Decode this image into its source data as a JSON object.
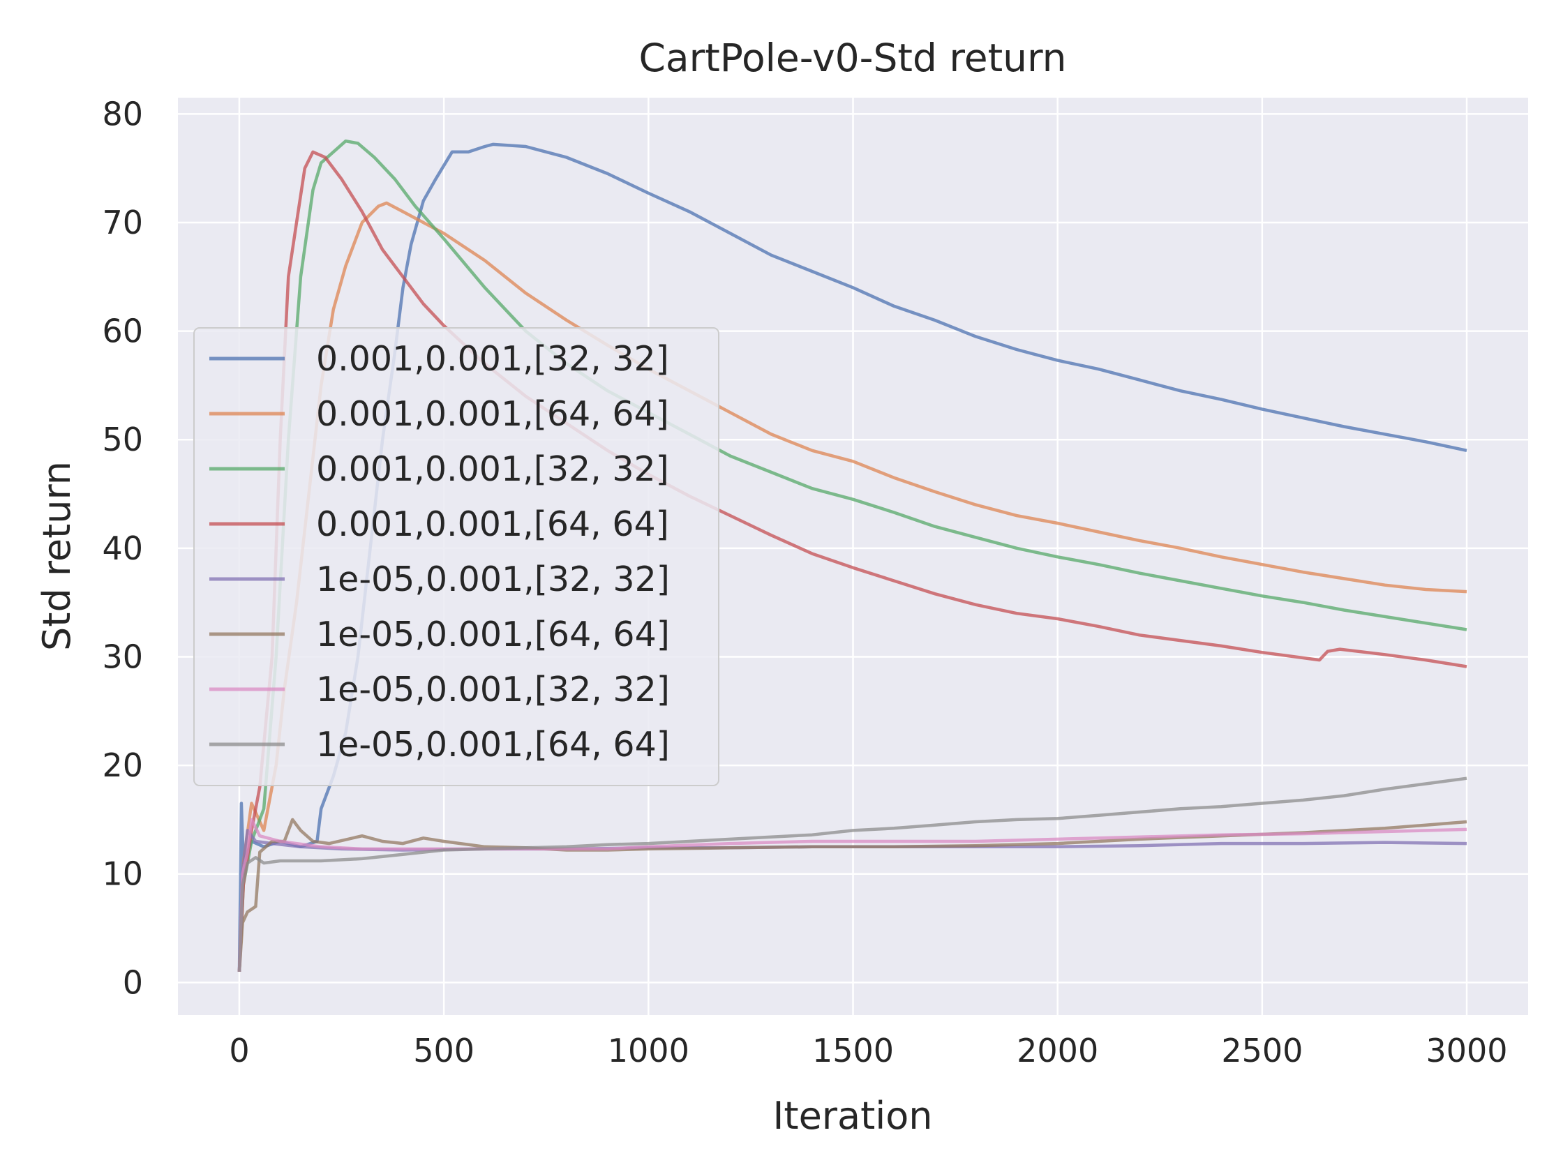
{
  "chart_data": {
    "type": "line",
    "title": "CartPole-v0-Std return",
    "xlabel": "Iteration",
    "ylabel": "Std return",
    "xlim": [
      -150,
      3150
    ],
    "ylim": [
      -3,
      81.5
    ],
    "xticks": [
      "0",
      "500",
      "1000",
      "1500",
      "2000",
      "2500",
      "3000"
    ],
    "xtick_values": [
      0,
      500,
      1000,
      1500,
      2000,
      2500,
      3000
    ],
    "yticks": [
      "0",
      "10",
      "20",
      "30",
      "40",
      "50",
      "60",
      "70",
      "80"
    ],
    "ytick_values": [
      0,
      10,
      20,
      30,
      40,
      50,
      60,
      70,
      80
    ],
    "grid": true,
    "legend_position": "center-left",
    "background": "#EAEAF2",
    "series": [
      {
        "name": "0.001,0.001,[32, 32]",
        "color": "#4C72B0",
        "points": [
          [
            0,
            1
          ],
          [
            5,
            16.5
          ],
          [
            10,
            11
          ],
          [
            30,
            13
          ],
          [
            60,
            12.5
          ],
          [
            100,
            13
          ],
          [
            150,
            12.5
          ],
          [
            190,
            13
          ],
          [
            200,
            16
          ],
          [
            230,
            19
          ],
          [
            260,
            23
          ],
          [
            290,
            30
          ],
          [
            320,
            40
          ],
          [
            350,
            50
          ],
          [
            380,
            58
          ],
          [
            400,
            64
          ],
          [
            420,
            68
          ],
          [
            450,
            72
          ],
          [
            480,
            74
          ],
          [
            520,
            76.5
          ],
          [
            560,
            76.5
          ],
          [
            600,
            77
          ],
          [
            620,
            77.2
          ],
          [
            700,
            77
          ],
          [
            800,
            76
          ],
          [
            900,
            74.5
          ],
          [
            1000,
            72.7
          ],
          [
            1100,
            71
          ],
          [
            1200,
            69
          ],
          [
            1300,
            67
          ],
          [
            1400,
            65.5
          ],
          [
            1500,
            64
          ],
          [
            1600,
            62.3
          ],
          [
            1700,
            61
          ],
          [
            1800,
            59.5
          ],
          [
            1900,
            58.3
          ],
          [
            2000,
            57.3
          ],
          [
            2100,
            56.5
          ],
          [
            2200,
            55.5
          ],
          [
            2300,
            54.5
          ],
          [
            2400,
            53.7
          ],
          [
            2500,
            52.8
          ],
          [
            2600,
            52
          ],
          [
            2700,
            51.2
          ],
          [
            2800,
            50.5
          ],
          [
            2900,
            49.8
          ],
          [
            3000,
            49
          ]
        ]
      },
      {
        "name": "0.001,0.001,[64, 64]",
        "color": "#DD8452",
        "points": [
          [
            0,
            1
          ],
          [
            10,
            11
          ],
          [
            30,
            16.5
          ],
          [
            60,
            14
          ],
          [
            90,
            20
          ],
          [
            110,
            27
          ],
          [
            140,
            35
          ],
          [
            170,
            45
          ],
          [
            200,
            55
          ],
          [
            230,
            62
          ],
          [
            260,
            66
          ],
          [
            300,
            70
          ],
          [
            340,
            71.5
          ],
          [
            360,
            71.8
          ],
          [
            400,
            71
          ],
          [
            450,
            70
          ],
          [
            500,
            69
          ],
          [
            600,
            66.5
          ],
          [
            700,
            63.5
          ],
          [
            800,
            61
          ],
          [
            900,
            58.7
          ],
          [
            1000,
            56.5
          ],
          [
            1100,
            54.5
          ],
          [
            1200,
            52.5
          ],
          [
            1300,
            50.5
          ],
          [
            1400,
            49
          ],
          [
            1500,
            48
          ],
          [
            1600,
            46.5
          ],
          [
            1700,
            45.2
          ],
          [
            1800,
            44
          ],
          [
            1900,
            43
          ],
          [
            2000,
            42.3
          ],
          [
            2100,
            41.5
          ],
          [
            2200,
            40.7
          ],
          [
            2300,
            40
          ],
          [
            2400,
            39.2
          ],
          [
            2500,
            38.5
          ],
          [
            2600,
            37.8
          ],
          [
            2700,
            37.2
          ],
          [
            2800,
            36.6
          ],
          [
            2900,
            36.2
          ],
          [
            3000,
            36
          ]
        ]
      },
      {
        "name": "0.001,0.001,[32, 32]",
        "color": "#55A868",
        "points": [
          [
            0,
            1
          ],
          [
            10,
            9
          ],
          [
            30,
            13
          ],
          [
            60,
            16
          ],
          [
            90,
            30
          ],
          [
            120,
            50
          ],
          [
            150,
            65
          ],
          [
            180,
            73
          ],
          [
            200,
            75.5
          ],
          [
            230,
            76.5
          ],
          [
            260,
            77.5
          ],
          [
            290,
            77.3
          ],
          [
            330,
            76
          ],
          [
            380,
            74
          ],
          [
            430,
            71.5
          ],
          [
            500,
            68.5
          ],
          [
            600,
            64
          ],
          [
            700,
            60
          ],
          [
            800,
            57
          ],
          [
            900,
            54.5
          ],
          [
            1000,
            52.5
          ],
          [
            1100,
            50.5
          ],
          [
            1200,
            48.5
          ],
          [
            1300,
            47
          ],
          [
            1400,
            45.5
          ],
          [
            1500,
            44.5
          ],
          [
            1600,
            43.3
          ],
          [
            1700,
            42
          ],
          [
            1800,
            41
          ],
          [
            1900,
            40
          ],
          [
            2000,
            39.2
          ],
          [
            2100,
            38.5
          ],
          [
            2200,
            37.7
          ],
          [
            2300,
            37
          ],
          [
            2400,
            36.3
          ],
          [
            2500,
            35.6
          ],
          [
            2600,
            35
          ],
          [
            2700,
            34.3
          ],
          [
            2800,
            33.7
          ],
          [
            2900,
            33.1
          ],
          [
            3000,
            32.5
          ]
        ]
      },
      {
        "name": "0.001,0.001,[64, 64]",
        "color": "#C44E52",
        "points": [
          [
            0,
            1
          ],
          [
            10,
            9
          ],
          [
            30,
            14
          ],
          [
            50,
            18
          ],
          [
            80,
            30
          ],
          [
            100,
            50
          ],
          [
            120,
            65
          ],
          [
            140,
            70
          ],
          [
            160,
            75
          ],
          [
            180,
            76.5
          ],
          [
            210,
            76
          ],
          [
            250,
            74
          ],
          [
            300,
            71
          ],
          [
            350,
            67.5
          ],
          [
            400,
            65
          ],
          [
            450,
            62.5
          ],
          [
            500,
            60.5
          ],
          [
            600,
            57
          ],
          [
            700,
            54
          ],
          [
            800,
            51.5
          ],
          [
            900,
            49
          ],
          [
            1000,
            46.8
          ],
          [
            1100,
            44.8
          ],
          [
            1200,
            43
          ],
          [
            1300,
            41.2
          ],
          [
            1400,
            39.5
          ],
          [
            1500,
            38.2
          ],
          [
            1600,
            37
          ],
          [
            1700,
            35.8
          ],
          [
            1800,
            34.8
          ],
          [
            1900,
            34
          ],
          [
            2000,
            33.5
          ],
          [
            2100,
            32.8
          ],
          [
            2200,
            32
          ],
          [
            2300,
            31.5
          ],
          [
            2400,
            31
          ],
          [
            2500,
            30.4
          ],
          [
            2600,
            29.9
          ],
          [
            2640,
            29.7
          ],
          [
            2660,
            30.5
          ],
          [
            2690,
            30.7
          ],
          [
            2800,
            30.2
          ],
          [
            2900,
            29.7
          ],
          [
            3000,
            29.1
          ]
        ]
      },
      {
        "name": "1e-05,0.001,[32, 32]",
        "color": "#8172B3",
        "points": [
          [
            0,
            1
          ],
          [
            8,
            10
          ],
          [
            20,
            14
          ],
          [
            40,
            13
          ],
          [
            80,
            12.8
          ],
          [
            150,
            12.5
          ],
          [
            250,
            12.3
          ],
          [
            400,
            12.2
          ],
          [
            600,
            12.3
          ],
          [
            800,
            12.3
          ],
          [
            1000,
            12.4
          ],
          [
            1200,
            12.4
          ],
          [
            1400,
            12.5
          ],
          [
            1600,
            12.5
          ],
          [
            1800,
            12.5
          ],
          [
            2000,
            12.5
          ],
          [
            2200,
            12.6
          ],
          [
            2400,
            12.8
          ],
          [
            2600,
            12.8
          ],
          [
            2800,
            12.9
          ],
          [
            3000,
            12.8
          ]
        ]
      },
      {
        "name": "1e-05,0.001,[64, 64]",
        "color": "#937860",
        "points": [
          [
            0,
            1
          ],
          [
            8,
            5.5
          ],
          [
            20,
            6.5
          ],
          [
            40,
            7
          ],
          [
            50,
            12
          ],
          [
            80,
            13
          ],
          [
            110,
            13
          ],
          [
            130,
            15
          ],
          [
            150,
            14
          ],
          [
            180,
            13
          ],
          [
            220,
            12.8
          ],
          [
            300,
            13.5
          ],
          [
            350,
            13
          ],
          [
            400,
            12.8
          ],
          [
            450,
            13.3
          ],
          [
            500,
            13
          ],
          [
            600,
            12.5
          ],
          [
            700,
            12.4
          ],
          [
            800,
            12.2
          ],
          [
            900,
            12.2
          ],
          [
            1000,
            12.3
          ],
          [
            1200,
            12.4
          ],
          [
            1400,
            12.5
          ],
          [
            1600,
            12.5
          ],
          [
            1800,
            12.6
          ],
          [
            2000,
            12.8
          ],
          [
            2200,
            13.2
          ],
          [
            2400,
            13.5
          ],
          [
            2600,
            13.8
          ],
          [
            2800,
            14.2
          ],
          [
            2900,
            14.5
          ],
          [
            3000,
            14.8
          ]
        ]
      },
      {
        "name": "1e-05,0.001,[32, 32]",
        "color": "#DA8BC3",
        "points": [
          [
            0,
            1
          ],
          [
            8,
            10
          ],
          [
            20,
            12
          ],
          [
            30,
            15
          ],
          [
            50,
            13.5
          ],
          [
            100,
            13
          ],
          [
            200,
            12.5
          ],
          [
            300,
            12.3
          ],
          [
            500,
            12.3
          ],
          [
            700,
            12.3
          ],
          [
            900,
            12.3
          ],
          [
            1000,
            12.5
          ],
          [
            1200,
            12.8
          ],
          [
            1400,
            13
          ],
          [
            1600,
            13
          ],
          [
            1800,
            13
          ],
          [
            2000,
            13.2
          ],
          [
            2200,
            13.4
          ],
          [
            2400,
            13.6
          ],
          [
            2600,
            13.7
          ],
          [
            2800,
            13.9
          ],
          [
            3000,
            14.1
          ]
        ]
      },
      {
        "name": "1e-05,0.001,[64, 64]",
        "color": "#8C8C8C",
        "points": [
          [
            0,
            1
          ],
          [
            8,
            9
          ],
          [
            20,
            11
          ],
          [
            40,
            11.5
          ],
          [
            60,
            11
          ],
          [
            100,
            11.2
          ],
          [
            200,
            11.2
          ],
          [
            300,
            11.4
          ],
          [
            400,
            11.8
          ],
          [
            500,
            12.2
          ],
          [
            600,
            12.3
          ],
          [
            700,
            12.4
          ],
          [
            800,
            12.5
          ],
          [
            900,
            12.7
          ],
          [
            1000,
            12.8
          ],
          [
            1100,
            13
          ],
          [
            1200,
            13.2
          ],
          [
            1300,
            13.4
          ],
          [
            1400,
            13.6
          ],
          [
            1500,
            14
          ],
          [
            1600,
            14.2
          ],
          [
            1700,
            14.5
          ],
          [
            1800,
            14.8
          ],
          [
            1900,
            15
          ],
          [
            2000,
            15.1
          ],
          [
            2100,
            15.4
          ],
          [
            2200,
            15.7
          ],
          [
            2300,
            16
          ],
          [
            2400,
            16.2
          ],
          [
            2500,
            16.5
          ],
          [
            2600,
            16.8
          ],
          [
            2700,
            17.2
          ],
          [
            2800,
            17.8
          ],
          [
            2900,
            18.3
          ],
          [
            3000,
            18.8
          ]
        ]
      }
    ]
  }
}
